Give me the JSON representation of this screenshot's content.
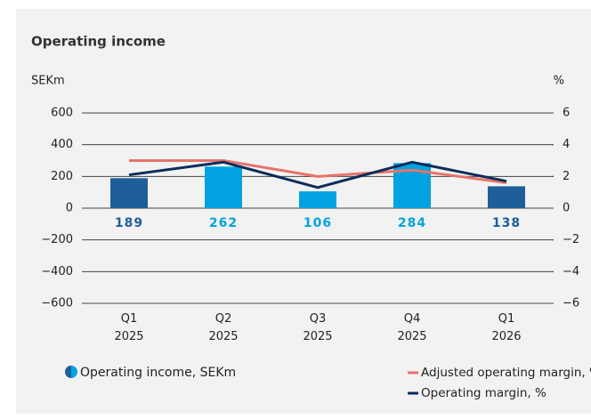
{
  "chart_data": {
    "type": "bar",
    "title": "Operating income",
    "ylabel": "SEKm",
    "y2label": "%",
    "categories": [
      "Q1 2025",
      "Q2 2025",
      "Q3 2025",
      "Q4 2025",
      "Q1 2026"
    ],
    "ylim": [
      -600,
      600
    ],
    "yticks": [
      600,
      400,
      200,
      0,
      {
        "value": -200,
        "label": "−200"
      },
      {
        "value": -400,
        "label": "−400"
      },
      {
        "value": -600,
        "label": "−600"
      }
    ],
    "y2lim": [
      -6,
      6
    ],
    "y2ticks": [
      6,
      4,
      2,
      0,
      {
        "value": -2,
        "label": "−2"
      },
      {
        "value": -4,
        "label": "−4"
      },
      {
        "value": -6,
        "label": "−6"
      }
    ],
    "grid": true,
    "series": [
      {
        "name": "Operating income, SEKm",
        "type": "bar",
        "colors": [
          "#1f5f99",
          "#00a3e0",
          "#00a3e0",
          "#00a3e0",
          "#1f5f99"
        ],
        "values": [
          189,
          262,
          106,
          284,
          138
        ]
      },
      {
        "name": "Adjusted operating margin, %",
        "type": "line",
        "axis": "y2",
        "color": "#e8736a",
        "values": [
          3.0,
          3.0,
          2.0,
          2.4,
          1.6
        ]
      },
      {
        "name": "Operating margin, %",
        "type": "line",
        "axis": "y2",
        "color": "#0b2d5b",
        "values": [
          2.1,
          2.9,
          1.3,
          2.9,
          1.7
        ]
      }
    ]
  }
}
